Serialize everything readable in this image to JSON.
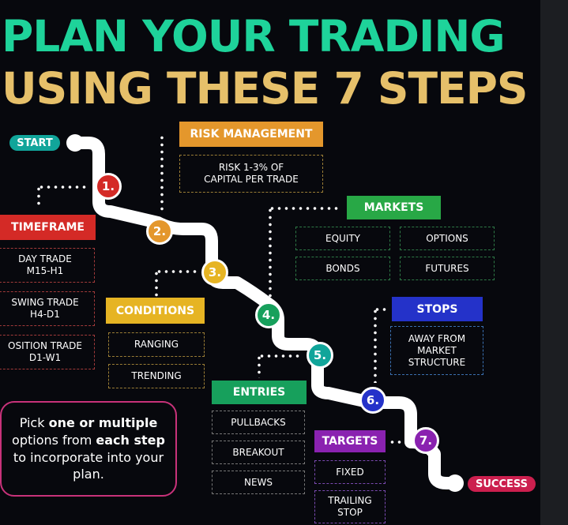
{
  "title": {
    "line1": "PLAN YOUR TRADING",
    "line2": "USING THESE 7 STEPS"
  },
  "colors": {
    "green": "#1ed39a",
    "gold": "#e6c06a",
    "red": "#d42a26",
    "orange": "#e4972c",
    "yellow": "#e6b423",
    "blue": "#1d8ed1",
    "teal": "#11a59a",
    "navy": "#2432c9",
    "purple": "#8a22b0",
    "crimson": "#cc1f4e"
  },
  "road": {
    "start_label": "START",
    "end_label": "SUCCESS"
  },
  "steps": [
    {
      "number": "1.",
      "color": "#d42a26"
    },
    {
      "number": "2.",
      "color": "#e4972c"
    },
    {
      "number": "3.",
      "color": "#e6b423"
    },
    {
      "number": "4.",
      "color": "#17a05c"
    },
    {
      "number": "5.",
      "color": "#11a59a"
    },
    {
      "number": "6.",
      "color": "#2432c9"
    },
    {
      "number": "7.",
      "color": "#8a22b0"
    }
  ],
  "timeframe": {
    "header": "TIMEFRAME",
    "options": [
      "DAY TRADE\nM15-H1",
      "SWING TRADE\nH4-D1",
      "OSITION TRADE\nD1-W1"
    ]
  },
  "risk": {
    "header": "RISK MANAGEMENT",
    "options": [
      "RISK 1-3% OF\nCAPITAL PER TRADE"
    ]
  },
  "conditions": {
    "header": "CONDITIONS",
    "options": [
      "RANGING",
      "TRENDING"
    ]
  },
  "markets": {
    "header": "MARKETS",
    "options": [
      "EQUITY",
      "OPTIONS",
      "BONDS",
      "FUTURES"
    ]
  },
  "entries": {
    "header": "ENTRIES",
    "options": [
      "PULLBACKS",
      "BREAKOUT",
      "NEWS"
    ]
  },
  "stops": {
    "header": "STOPS",
    "options": [
      "AWAY FROM\nMARKET\nSTRUCTURE"
    ]
  },
  "targets": {
    "header": "TARGETS",
    "options": [
      "FIXED",
      "TRAILING\nSTOP"
    ]
  },
  "note": {
    "part1": "Pick ",
    "bold1": "one or multiple",
    "part2": " options from ",
    "bold2": "each step",
    "part3": " to incorporate into your plan."
  }
}
